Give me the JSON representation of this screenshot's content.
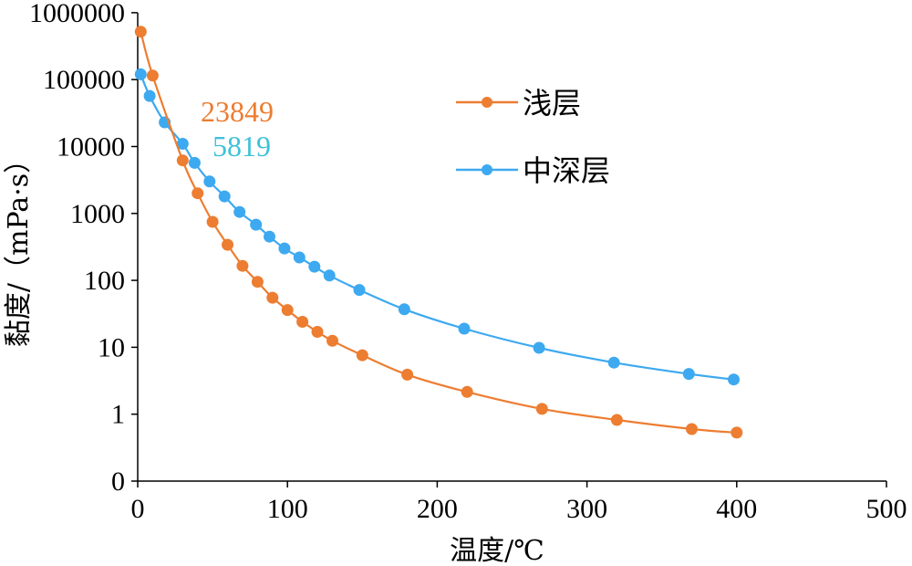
{
  "chart_data": {
    "type": "line",
    "x_axis": {
      "label": "温度/℃",
      "range": [
        0,
        500
      ],
      "ticks": [
        "0",
        "100",
        "200",
        "300",
        "400",
        "500"
      ]
    },
    "y_axis": {
      "label": "黏度/（mPa·s）",
      "scale": "log",
      "ticks": [
        "0",
        "1",
        "10",
        "100",
        "1000",
        "10000",
        "100000",
        "1000000"
      ]
    },
    "legend_position": "right",
    "series": [
      {
        "name": "浅层",
        "color": "#ED7D31",
        "x": [
          2,
          10,
          30,
          40,
          50,
          60,
          70,
          80,
          90,
          100,
          110,
          120,
          130,
          150,
          180,
          220,
          270,
          320,
          370,
          400
        ],
        "y": [
          520000,
          115000,
          6200,
          2000,
          750,
          340,
          165,
          95,
          55,
          36,
          24,
          17,
          12.5,
          7.6,
          3.9,
          2.15,
          1.2,
          0.82,
          0.6,
          0.53
        ]
      },
      {
        "name": "中深层",
        "color": "#3DA9F0",
        "x": [
          2,
          8,
          18,
          30,
          38,
          48,
          58,
          68,
          79,
          88,
          98,
          108,
          118,
          128,
          148,
          178,
          218,
          268,
          318,
          368,
          398
        ],
        "y": [
          120000,
          57000,
          23000,
          11000,
          5700,
          3000,
          1800,
          1050,
          680,
          450,
          300,
          220,
          160,
          118,
          72,
          37,
          19,
          9.8,
          5.9,
          4.0,
          3.3
        ]
      }
    ],
    "annotations": [
      {
        "text": "23849",
        "color": "#ED7D31"
      },
      {
        "text": "5819",
        "color": "#3FC1D9"
      }
    ]
  }
}
